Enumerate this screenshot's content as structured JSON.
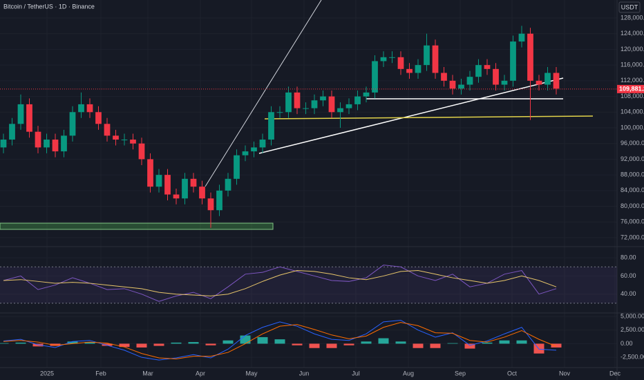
{
  "chart_data": [
    {
      "type": "candlestick",
      "title": "Bitcoin / TetherUS · 1D · Binance",
      "currency": "USDT",
      "last_price": {
        "value": 109881.27,
        "label": "109,881.27"
      },
      "up_color": "#089981",
      "down_color": "#f23645",
      "xlim": [
        -0.4,
        71.04
      ],
      "xticks": [
        {
          "value": 5.04,
          "label": "2025"
        },
        {
          "value": 11.28,
          "label": "Feb"
        },
        {
          "value": 16.72,
          "label": "Mar"
        },
        {
          "value": 22.8,
          "label": "Apr"
        },
        {
          "value": 28.72,
          "label": "May"
        },
        {
          "value": 34.8,
          "label": "Jun"
        },
        {
          "value": 40.8,
          "label": "Jul"
        },
        {
          "value": 46.88,
          "label": "Aug"
        },
        {
          "value": 52.88,
          "label": "Sep"
        },
        {
          "value": 58.88,
          "label": "Oct"
        },
        {
          "value": 64.96,
          "label": "Nov"
        },
        {
          "value": 70.8,
          "label": "Dec"
        }
      ],
      "ylim": [
        70060,
        132580
      ],
      "yticks": [
        {
          "value": 128000,
          "label": "128,000.00"
        },
        {
          "value": 124000,
          "label": "124,000.00"
        },
        {
          "value": 120000,
          "label": "120,000.00"
        },
        {
          "value": 116000,
          "label": "116,000.00"
        },
        {
          "value": 112000,
          "label": "112,000.00"
        },
        {
          "value": 108000,
          "label": "108,000.00"
        },
        {
          "value": 104000,
          "label": "104,000.00"
        },
        {
          "value": 100000,
          "label": "100,000.00"
        },
        {
          "value": 96000,
          "label": "96,000.00"
        },
        {
          "value": 92000,
          "label": "92,000.00"
        },
        {
          "value": 88000,
          "label": "88,000.00"
        },
        {
          "value": 84000,
          "label": "84,000.00"
        },
        {
          "value": 80000,
          "label": "80,000.00"
        },
        {
          "value": 76000,
          "label": "76,000.00"
        },
        {
          "value": 72000,
          "label": "72,000.00"
        }
      ],
      "open": [
        95000,
        97000,
        101000,
        106000,
        99000,
        95000,
        97000,
        94000,
        98000,
        104000,
        106000,
        104000,
        101000,
        98000,
        97000,
        97000,
        96000,
        92000,
        85000,
        88000,
        83000,
        82000,
        87000,
        85000,
        82000,
        79000,
        84000,
        87000,
        93000,
        94000,
        95000,
        97000,
        104000,
        104000,
        109000,
        105000,
        105000,
        107000,
        108000,
        104000,
        105000,
        106000,
        108000,
        109000,
        117000,
        118000,
        118000,
        115000,
        114000,
        116000,
        121000,
        114000,
        112000,
        110000,
        111000,
        113000,
        116000,
        115000,
        111000,
        112000,
        122000,
        124000,
        112000,
        111000,
        114000
      ],
      "high": [
        98500,
        102500,
        108500,
        107500,
        100500,
        98500,
        98500,
        99500,
        105500,
        109000,
        107500,
        105500,
        102500,
        99500,
        98500,
        98500,
        97500,
        93500,
        89500,
        89500,
        84500,
        88500,
        88500,
        86500,
        83500,
        85500,
        88500,
        94500,
        95500,
        96500,
        98500,
        105500,
        105500,
        110500,
        110500,
        106500,
        108500,
        109500,
        109500,
        106500,
        107500,
        109500,
        110500,
        118500,
        119500,
        119500,
        119500,
        116500,
        117500,
        124000,
        122500,
        115500,
        113500,
        112500,
        114500,
        117500,
        117500,
        116500,
        113500,
        123500,
        126000,
        125500,
        113500,
        115500,
        115500
      ],
      "low": [
        93500,
        95500,
        99500,
        97500,
        93500,
        93500,
        92500,
        92500,
        96500,
        102500,
        102500,
        99500,
        96500,
        95500,
        95500,
        94500,
        90500,
        83500,
        83500,
        81500,
        80500,
        80500,
        83500,
        80500,
        74500,
        77500,
        82500,
        85500,
        91500,
        92500,
        93500,
        95500,
        102500,
        102500,
        103500,
        103500,
        103500,
        105500,
        102500,
        100000,
        103500,
        104500,
        106500,
        107500,
        115500,
        116500,
        113500,
        112500,
        112500,
        114500,
        112500,
        110500,
        108500,
        108500,
        109500,
        111500,
        113500,
        109500,
        109500,
        110500,
        120500,
        102000,
        109500,
        109500,
        108500
      ],
      "close": [
        97000,
        101000,
        106000,
        99000,
        95000,
        97000,
        94000,
        98000,
        104000,
        106000,
        104000,
        101000,
        98000,
        97000,
        97000,
        96000,
        92000,
        85000,
        88000,
        83000,
        82000,
        87000,
        85000,
        82000,
        79000,
        84000,
        87000,
        93000,
        94000,
        95000,
        97000,
        104000,
        104000,
        109000,
        105000,
        105000,
        107000,
        108000,
        104000,
        105000,
        106000,
        108000,
        109000,
        117000,
        118000,
        118000,
        115000,
        114000,
        116000,
        121000,
        114000,
        112000,
        110000,
        111000,
        113000,
        116000,
        115000,
        111000,
        112000,
        122000,
        124000,
        112000,
        111000,
        114000,
        110000
      ]
    },
    {
      "type": "line",
      "x": [
        0,
        2,
        4,
        6,
        8,
        10,
        12,
        14,
        16,
        18,
        20,
        22,
        24,
        26,
        28,
        30,
        32,
        34,
        36,
        38,
        40,
        42,
        44,
        46,
        48,
        50,
        52,
        54,
        56,
        58,
        60,
        62,
        64
      ],
      "xlim": [
        -0.4,
        71.04
      ],
      "ylim": [
        20,
        90
      ],
      "yticks": [
        {
          "value": 80,
          "label": "80.00"
        },
        {
          "value": 60,
          "label": "60.00"
        },
        {
          "value": 40,
          "label": "40.00"
        }
      ],
      "band_levels": [
        30,
        70
      ],
      "series": [
        {
          "color": "#7e57c2",
          "values": [
            55,
            60,
            45,
            50,
            58,
            52,
            45,
            46,
            40,
            32,
            38,
            42,
            35,
            48,
            62,
            64,
            70,
            65,
            60,
            55,
            54,
            58,
            72,
            70,
            60,
            55,
            62,
            48,
            52,
            62,
            66,
            40,
            46
          ]
        },
        {
          "color": "#e8c66a",
          "values": [
            55,
            56,
            54,
            52,
            53,
            52,
            50,
            48,
            46,
            42,
            40,
            39,
            38,
            40,
            46,
            54,
            61,
            66,
            65,
            62,
            58,
            56,
            60,
            65,
            66,
            62,
            58,
            55,
            52,
            55,
            60,
            55,
            48
          ]
        }
      ]
    },
    {
      "type": "macd",
      "x": [
        0,
        2,
        4,
        6,
        8,
        10,
        12,
        14,
        16,
        18,
        20,
        22,
        24,
        26,
        28,
        30,
        32,
        34,
        36,
        38,
        40,
        42,
        44,
        46,
        48,
        50,
        52,
        54,
        56,
        58,
        60,
        62,
        64
      ],
      "xlim": [
        -0.4,
        71.04
      ],
      "ylim": [
        -4125,
        5375
      ],
      "yticks": [
        {
          "value": 5000,
          "label": "5,000.00"
        },
        {
          "value": 2500,
          "label": "2,500.00"
        },
        {
          "value": 0,
          "label": "0.00"
        },
        {
          "value": -2500,
          "label": "-2,500.00"
        }
      ],
      "histogram": {
        "up_color": "#26a69a",
        "down_color": "#ef5350",
        "values": [
          100,
          200,
          -500,
          -400,
          400,
          300,
          -400,
          -600,
          -700,
          -400,
          200,
          300,
          -300,
          600,
          1500,
          1200,
          800,
          -300,
          -800,
          -800,
          -300,
          400,
          1000,
          400,
          -800,
          -800,
          100,
          -900,
          200,
          600,
          600,
          -1800,
          -700
        ]
      },
      "series": [
        {
          "color": "#2962ff",
          "values": [
            500,
            800,
            -200,
            -700,
            400,
            600,
            -300,
            -1200,
            -2500,
            -3000,
            -2600,
            -2000,
            -2600,
            -1000,
            1500,
            3000,
            4000,
            3200,
            1800,
            800,
            600,
            1800,
            4000,
            4300,
            2500,
            1200,
            2000,
            -300,
            500,
            1800,
            3000,
            -1000,
            -1200
          ]
        },
        {
          "color": "#ff6d00",
          "values": [
            400,
            600,
            300,
            -300,
            0,
            300,
            100,
            -600,
            -1800,
            -2600,
            -2800,
            -2300,
            -2300,
            -1600,
            0,
            1800,
            3200,
            3500,
            2600,
            1600,
            900,
            1400,
            3000,
            3900,
            3300,
            2000,
            1900,
            600,
            300,
            1200,
            2400,
            800,
            -500
          ]
        }
      ]
    }
  ]
}
